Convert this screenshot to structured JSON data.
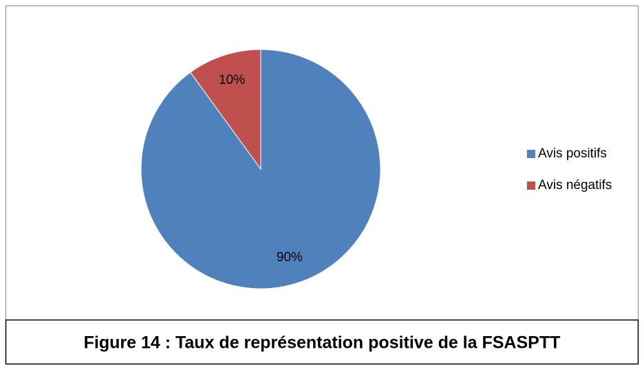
{
  "chart_data": {
    "type": "pie",
    "caption": "Figure 14 : Taux de représentation positive de la FSASPTT",
    "categories": [
      "Avis positifs",
      "Avis négatifs"
    ],
    "values": [
      90,
      10
    ],
    "value_labels": [
      "90%",
      "10%"
    ],
    "colors": [
      "#4f81bd",
      "#c0504d"
    ],
    "legend": "right"
  }
}
